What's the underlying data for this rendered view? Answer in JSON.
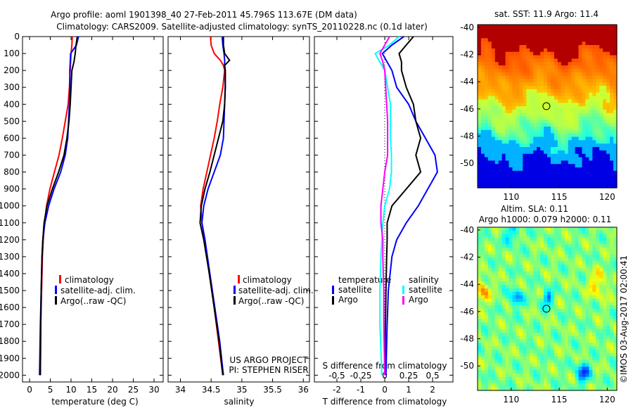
{
  "title_line1": "Argo profile: aoml 1901398_40 27-Feb-2011 45.796S 113.67E (DM data)",
  "title_line2": "Climatology: CARS2009. Satellite-adjusted climatology: synTS_20110228.nc (0.1d later)",
  "colors": {
    "climatology": "#ff0000",
    "satellite": "#0000ff",
    "argo": "#000000",
    "sal_satellite": "#00ffff",
    "sal_argo": "#ff00ff"
  },
  "chart_data": [
    {
      "type": "line",
      "name": "temperature",
      "xlabel": "temperature (deg C)",
      "xlim": [
        -1.7,
        32.2
      ],
      "ylim": [
        2040,
        0
      ],
      "xticks": [
        0,
        5,
        10,
        15,
        20,
        25,
        30
      ],
      "yticks": [
        0,
        100,
        200,
        300,
        400,
        500,
        600,
        700,
        800,
        900,
        1000,
        1100,
        1200,
        1300,
        1400,
        1500,
        1600,
        1700,
        1800,
        1900,
        2000
      ],
      "legend": [
        "climatology",
        "satellite-adj. clim.",
        "Argo(..raw -QC)"
      ],
      "depth": [
        0,
        50,
        100,
        150,
        200,
        300,
        400,
        500,
        600,
        700,
        800,
        900,
        1000,
        1100,
        1200,
        1300,
        1400,
        1500,
        1700,
        2000
      ],
      "series": [
        {
          "name": "climatology",
          "values": [
            10.3,
            10.2,
            10.0,
            9.9,
            9.8,
            9.6,
            9.3,
            8.6,
            7.9,
            7.1,
            6.0,
            4.9,
            4.1,
            3.6,
            3.3,
            3.1,
            3.0,
            2.9,
            2.7,
            2.6
          ]
        },
        {
          "name": "satellite",
          "values": [
            11.8,
            11.3,
            9.9,
            9.8,
            9.7,
            9.7,
            9.6,
            9.4,
            9.2,
            8.6,
            7.5,
            5.9,
            4.6,
            3.7,
            3.2,
            3.0,
            2.9,
            2.8,
            2.6,
            2.4
          ]
        },
        {
          "name": "argo",
          "values": [
            11.5,
            11.2,
            11.0,
            10.7,
            10.2,
            10.0,
            9.8,
            9.5,
            9.0,
            8.3,
            7.0,
            5.5,
            4.2,
            3.5,
            3.2,
            3.0,
            2.9,
            2.8,
            2.7,
            2.6
          ]
        }
      ]
    },
    {
      "type": "line",
      "name": "salinity",
      "xlabel": "salinity",
      "xlim": [
        33.8,
        36.1
      ],
      "ylim": [
        2040,
        0
      ],
      "xticks": [
        34,
        34.5,
        35,
        35.5,
        36
      ],
      "legend": [
        "climatology",
        "satellite-adj. clim.",
        "Argo(..raw -QC)"
      ],
      "annotation": [
        "US ARGO PROJECT",
        "PI: STEPHEN RISER"
      ],
      "depth": [
        0,
        50,
        100,
        140,
        170,
        200,
        300,
        400,
        500,
        600,
        700,
        800,
        900,
        1000,
        1100,
        1200,
        1400,
        1600,
        1800,
        2000
      ],
      "series": [
        {
          "name": "climatology",
          "values": [
            34.49,
            34.5,
            34.55,
            34.65,
            34.7,
            34.72,
            34.69,
            34.64,
            34.6,
            34.55,
            34.49,
            34.43,
            34.37,
            34.33,
            34.35,
            34.4,
            34.47,
            34.55,
            34.62,
            34.69
          ]
        },
        {
          "name": "satellite",
          "values": [
            34.68,
            34.69,
            34.71,
            34.72,
            34.72,
            34.73,
            34.73,
            34.72,
            34.71,
            34.7,
            34.65,
            34.55,
            34.45,
            34.38,
            34.35,
            34.4,
            34.48,
            34.56,
            34.64,
            34.7
          ]
        },
        {
          "name": "argo",
          "values": [
            34.7,
            34.7,
            34.72,
            34.8,
            34.72,
            34.73,
            34.73,
            34.72,
            34.69,
            34.62,
            34.55,
            34.48,
            34.4,
            34.34,
            34.32,
            34.38,
            34.47,
            34.55,
            34.63,
            34.69
          ]
        }
      ]
    },
    {
      "type": "line",
      "name": "differences",
      "xlabel": "T difference from climatology",
      "xlabel2": "S difference from climatology",
      "xlim": [
        -2.94,
        2.85
      ],
      "ylim": [
        2040,
        0
      ],
      "xticks": [
        -2,
        -1,
        0,
        1,
        2
      ],
      "xticks2": [
        -0.5,
        -0.25,
        0,
        0.25,
        0.5
      ],
      "s_scale": 4,
      "legend_temperature": {
        "title": "temperature",
        "items": [
          "satellite",
          "Argo"
        ]
      },
      "legend_salinity": {
        "title": "salinity",
        "items": [
          "satellite",
          "Argo"
        ]
      },
      "depth": [
        0,
        50,
        100,
        150,
        200,
        300,
        400,
        500,
        600,
        700,
        800,
        900,
        1000,
        1100,
        1200,
        1300,
        1500,
        1700,
        2000
      ],
      "series": [
        {
          "name": "T satellite",
          "values": [
            0.8,
            0.3,
            -0.1,
            0.1,
            0.3,
            0.5,
            1.0,
            1.3,
            1.7,
            2.1,
            2.2,
            1.8,
            1.4,
            0.9,
            0.5,
            0.3,
            0.15,
            0.1,
            0.05
          ]
        },
        {
          "name": "T Argo",
          "values": [
            1.2,
            0.9,
            0.6,
            0.7,
            0.7,
            0.9,
            1.2,
            1.3,
            1.5,
            1.3,
            1.5,
            0.9,
            0.3,
            0.1,
            0.1,
            0.08,
            0.05,
            0.03,
            0.0
          ]
        },
        {
          "name": "S satellite",
          "values": [
            0.15,
            0.05,
            -0.1,
            -0.05,
            0.0,
            0.03,
            0.06,
            0.06,
            0.06,
            0.07,
            0.07,
            0.05,
            0.0,
            -0.02,
            -0.03,
            -0.04,
            -0.05,
            -0.05,
            -0.03
          ]
        },
        {
          "name": "S Argo",
          "values": [
            0.05,
            0.0,
            -0.05,
            -0.02,
            0.0,
            0.01,
            0.02,
            0.03,
            0.03,
            0.03,
            0.0,
            -0.02,
            -0.04,
            -0.04,
            -0.02,
            -0.02,
            -0.01,
            -0.01,
            0.0
          ]
        }
      ]
    },
    {
      "type": "heatmap",
      "name": "sst-map",
      "title": "sat. SST: 11.9 Argo: 11.4",
      "xlim": [
        106.5,
        121
      ],
      "ylim": [
        -51.8,
        -39.8
      ],
      "xticks": [
        110,
        115,
        120
      ],
      "yticks": [
        -40,
        -42,
        -44,
        -46,
        -48,
        -50
      ],
      "marker": {
        "lon": 113.67,
        "lat": -45.796
      }
    },
    {
      "type": "heatmap",
      "name": "sla-map",
      "title_line1": "Altim. SLA: 0.11",
      "title_line2": "Argo h1000: 0.079 h2000: 0.11",
      "xlim": [
        106.5,
        121
      ],
      "ylim": [
        -51.8,
        -39.8
      ],
      "xticks": [
        110,
        115,
        120
      ],
      "yticks": [
        -40,
        -42,
        -44,
        -46,
        -48,
        -50
      ],
      "marker": {
        "lon": 113.67,
        "lat": -45.796
      }
    }
  ],
  "credit": "©IMOS 03-Aug-2017 02:00:41"
}
